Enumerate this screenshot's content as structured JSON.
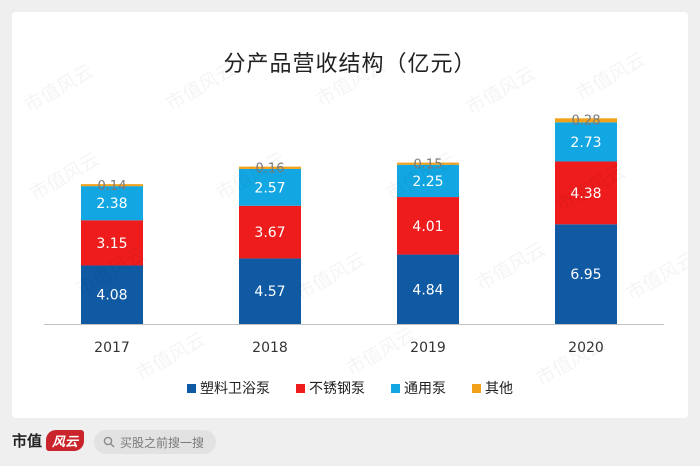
{
  "chart_data": {
    "type": "stacked-bar",
    "title": "分产品营收结构（亿元）",
    "categories": [
      "2017",
      "2018",
      "2019",
      "2020"
    ],
    "series": [
      {
        "name": "塑料卫浴泵",
        "color": "#0f5aa3",
        "labels": [
          "4.08",
          "4.57",
          "4.84",
          "6.95"
        ],
        "values": [
          4.08,
          4.57,
          4.84,
          6.95
        ]
      },
      {
        "name": "不锈钢泵",
        "color": "#ee1c1c",
        "labels": [
          "3.15",
          "3.67",
          "4.01",
          "4.38"
        ],
        "values": [
          3.15,
          3.67,
          4.01,
          4.38
        ]
      },
      {
        "name": "通用泵",
        "color": "#12a7e3",
        "labels": [
          "2.38",
          "2.57",
          "2.25",
          "2.73"
        ],
        "values": [
          2.38,
          2.57,
          2.25,
          2.73
        ]
      },
      {
        "name": "其他",
        "color": "#f2a11b",
        "labels": [
          "0.14",
          "0.16",
          "0.15",
          "0.28"
        ],
        "values": [
          0.14,
          0.16,
          0.15,
          0.28
        ]
      }
    ],
    "ylim": [
      0,
      14.5
    ],
    "legend_position": "bottom"
  },
  "watermark": "市值风云",
  "footer": {
    "brand_text": "市值",
    "brand_mark": "风云",
    "search_placeholder": "买股之前搜一搜"
  }
}
